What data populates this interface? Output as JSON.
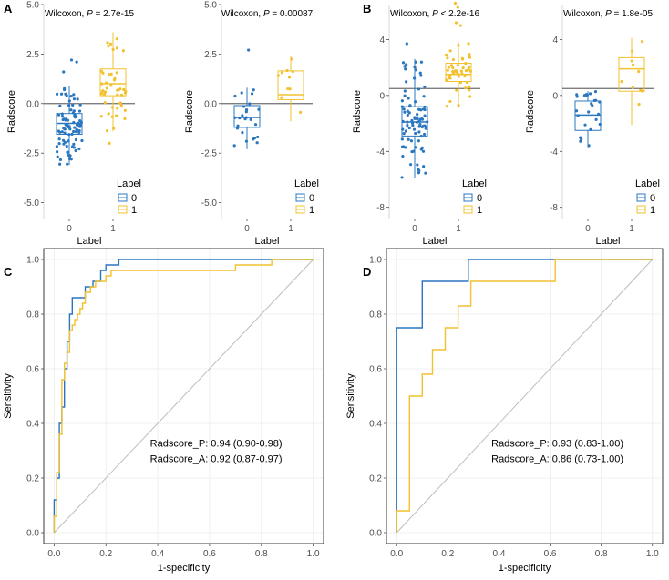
{
  "colors": {
    "group0": "#2a77c0",
    "group1": "#f2c12e",
    "grid": "#ebebeb",
    "diag": "#bdbdbd"
  },
  "chart_data": [
    {
      "panel_label": "A",
      "type": "box-scatter",
      "title_prefix": "Wilcoxon, ",
      "title_p": "P",
      "title_suffix": " = 2.7e-15",
      "xlabel": "Label",
      "ylabel": "Radscore",
      "categories": [
        "0",
        "1"
      ],
      "yticks": [
        "-5.0",
        "-2.5",
        "0.0",
        "2.5",
        "5.0"
      ],
      "ylim": [
        -5.8,
        5.0
      ],
      "hline": 0,
      "legend_title": "Label",
      "legend_items": [
        "0",
        "1"
      ],
      "boxes": [
        {
          "group": "0",
          "min": -3.1,
          "q1": -1.55,
          "median": -1.0,
          "q3": -0.5,
          "max": 0.9,
          "n": 90,
          "outliers": [
            2.2,
            2.1,
            1.6
          ]
        },
        {
          "group": "1",
          "min": -1.4,
          "q1": 0.4,
          "median": 1.0,
          "q3": 1.75,
          "max": 3.6,
          "n": 45,
          "outliers": [
            -2.0
          ]
        }
      ]
    },
    {
      "panel_label": "",
      "type": "box-scatter",
      "title_prefix": "Wilcoxon, ",
      "title_p": "P",
      "title_suffix": " = 0.00087",
      "xlabel": "Label",
      "ylabel": "Radscore",
      "categories": [
        "0",
        "1"
      ],
      "yticks": [
        "-5.0",
        "-2.5",
        "0.0",
        "2.5",
        "5.0"
      ],
      "ylim": [
        -5.8,
        5.0
      ],
      "hline": 0,
      "legend_title": "Label",
      "legend_items": [
        "0",
        "1"
      ],
      "boxes": [
        {
          "group": "0",
          "min": -2.3,
          "q1": -1.2,
          "median": -0.7,
          "q3": -0.1,
          "max": 0.8,
          "n": 25,
          "outliers": [
            2.7
          ]
        },
        {
          "group": "1",
          "min": -0.9,
          "q1": 0.2,
          "median": 0.45,
          "q3": 1.65,
          "max": 2.4,
          "n": 10,
          "outliers": []
        }
      ]
    },
    {
      "panel_label": "B",
      "type": "box-scatter",
      "title_prefix": "Wilcoxon, ",
      "title_p": "P",
      "title_suffix": " < 2.2e-16",
      "xlabel": "Label",
      "ylabel": "Radscore",
      "categories": [
        "0",
        "1"
      ],
      "yticks": [
        "-8",
        "-4",
        "0",
        "4"
      ],
      "ylim": [
        -8.8,
        6.5
      ],
      "hline": 0.5,
      "legend_title": "Label",
      "legend_items": [
        "0",
        "1"
      ],
      "boxes": [
        {
          "group": "0",
          "min": -5.9,
          "q1": -2.9,
          "median": -1.9,
          "q3": -0.8,
          "max": 2.6,
          "n": 90,
          "outliers": [
            3.7
          ]
        },
        {
          "group": "1",
          "min": -0.8,
          "q1": 1.0,
          "median": 1.5,
          "q3": 2.3,
          "max": 3.8,
          "n": 45,
          "outliers": [
            6.6,
            6.3,
            5.2,
            5.0
          ]
        }
      ]
    },
    {
      "panel_label": "",
      "type": "box-scatter",
      "title_prefix": "Wilcoxon, ",
      "title_p": "P",
      "title_suffix": " = 1.8e-05",
      "xlabel": "Label",
      "ylabel": "Radscore",
      "categories": [
        "0",
        "1"
      ],
      "yticks": [
        "-8",
        "-4",
        "0",
        "4"
      ],
      "ylim": [
        -8.8,
        6.5
      ],
      "hline": 0.5,
      "legend_title": "Label",
      "legend_items": [
        "0",
        "1"
      ],
      "boxes": [
        {
          "group": "0",
          "min": -3.7,
          "q1": -2.5,
          "median": -1.4,
          "q3": -0.4,
          "max": 0.3,
          "n": 25,
          "outliers": []
        },
        {
          "group": "1",
          "min": -2.1,
          "q1": 0.3,
          "median": 1.9,
          "q3": 2.7,
          "max": 4.1,
          "n": 10,
          "outliers": []
        }
      ]
    },
    {
      "panel_label": "C",
      "type": "roc",
      "xlabel": "1-specificity",
      "ylabel": "Sensitivity",
      "xticks": [
        "0.0",
        "0.2",
        "0.4",
        "0.6",
        "0.8",
        "1.0"
      ],
      "yticks": [
        "0.0",
        "0.2",
        "0.4",
        "0.6",
        "0.8",
        "1.0"
      ],
      "xlim": [
        -0.04,
        1.04
      ],
      "ylim": [
        -0.04,
        1.04
      ],
      "series": [
        {
          "name": "Radscore_P",
          "legend": "Radscore_P: 0.94 (0.90-0.98)",
          "x": [
            0,
            0,
            0.01,
            0.01,
            0.02,
            0.02,
            0.03,
            0.03,
            0.04,
            0.04,
            0.05,
            0.05,
            0.06,
            0.06,
            0.07,
            0.07,
            0.12,
            0.12,
            0.15,
            0.15,
            0.18,
            0.18,
            0.2,
            0.2,
            0.25,
            0.25,
            0.38,
            0.38,
            0.84,
            0.84,
            1
          ],
          "y": [
            0,
            0.12,
            0.12,
            0.2,
            0.2,
            0.4,
            0.4,
            0.46,
            0.46,
            0.6,
            0.6,
            0.7,
            0.7,
            0.8,
            0.8,
            0.86,
            0.86,
            0.9,
            0.9,
            0.92,
            0.92,
            0.96,
            0.96,
            0.98,
            0.98,
            1,
            1,
            1,
            1,
            1,
            1
          ]
        },
        {
          "name": "Radscore_A",
          "legend": "Radscore_A: 0.92 (0.87-0.97)",
          "x": [
            0,
            0,
            0.01,
            0.01,
            0.02,
            0.02,
            0.03,
            0.03,
            0.04,
            0.04,
            0.05,
            0.05,
            0.06,
            0.06,
            0.07,
            0.07,
            0.08,
            0.08,
            0.09,
            0.09,
            0.1,
            0.1,
            0.11,
            0.11,
            0.12,
            0.12,
            0.14,
            0.14,
            0.16,
            0.16,
            0.2,
            0.2,
            0.22,
            0.22,
            0.24,
            0.24,
            0.7,
            0.7,
            0.84,
            0.84,
            1
          ],
          "y": [
            0,
            0.06,
            0.06,
            0.22,
            0.22,
            0.36,
            0.36,
            0.56,
            0.56,
            0.62,
            0.62,
            0.66,
            0.66,
            0.74,
            0.74,
            0.76,
            0.76,
            0.78,
            0.78,
            0.8,
            0.8,
            0.82,
            0.82,
            0.84,
            0.84,
            0.88,
            0.88,
            0.9,
            0.9,
            0.92,
            0.92,
            0.94,
            0.94,
            0.96,
            0.96,
            0.96,
            0.96,
            0.98,
            0.98,
            1,
            1
          ]
        }
      ]
    },
    {
      "panel_label": "D",
      "type": "roc",
      "xlabel": "1-specificity",
      "ylabel": "Sensitivity",
      "xticks": [
        "0.0",
        "0.2",
        "0.4",
        "0.6",
        "0.8",
        "1.0"
      ],
      "yticks": [
        "0.0",
        "0.2",
        "0.4",
        "0.6",
        "0.8",
        "1.0"
      ],
      "xlim": [
        -0.04,
        1.04
      ],
      "ylim": [
        -0.04,
        1.04
      ],
      "series": [
        {
          "name": "Radscore_P",
          "legend": "Radscore_P: 0.93 (0.83-1.00)",
          "x": [
            0,
            0,
            0,
            0.1,
            0.1,
            0.28,
            0.28,
            1
          ],
          "y": [
            0,
            0.08,
            0.75,
            0.75,
            0.92,
            0.92,
            1,
            1
          ]
        },
        {
          "name": "Radscore_A",
          "legend": "Radscore_A: 0.86 (0.73-1.00)",
          "x": [
            0,
            0,
            0.05,
            0.05,
            0.1,
            0.1,
            0.14,
            0.14,
            0.19,
            0.19,
            0.24,
            0.24,
            0.29,
            0.29,
            0.62,
            0.62,
            1
          ],
          "y": [
            0,
            0.08,
            0.08,
            0.5,
            0.5,
            0.58,
            0.58,
            0.67,
            0.67,
            0.75,
            0.75,
            0.83,
            0.83,
            0.92,
            0.92,
            1,
            1
          ]
        }
      ]
    }
  ]
}
